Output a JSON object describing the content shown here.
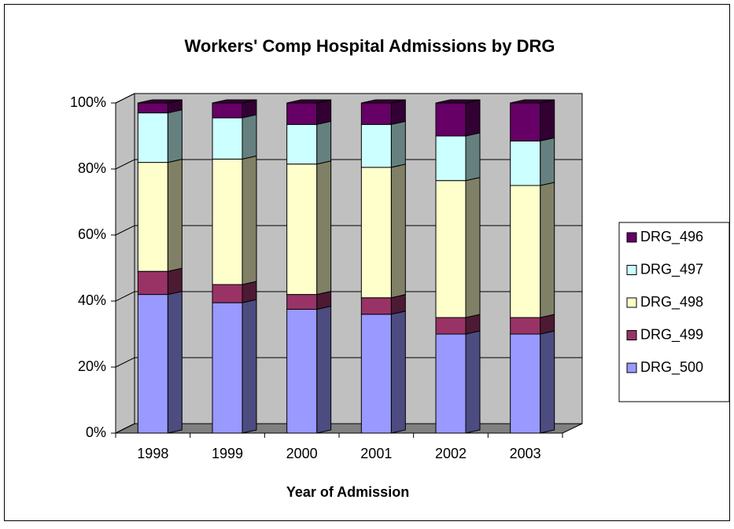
{
  "chart_data": {
    "type": "bar3d_stacked_percent",
    "title": "Workers' Comp Hospital Admissions by DRG",
    "x_label": "Year of Admission",
    "categories": [
      "1998",
      "1999",
      "2000",
      "2001",
      "2002",
      "2003"
    ],
    "series": [
      {
        "name": "DRG_500",
        "color": "#9999ff",
        "side_color": "#4c4c80",
        "values": [
          42,
          39.5,
          37.5,
          36,
          30,
          30
        ]
      },
      {
        "name": "DRG_499",
        "color": "#993366",
        "side_color": "#4d1a33",
        "values": [
          7,
          5.5,
          4.5,
          5,
          5,
          5
        ]
      },
      {
        "name": "DRG_498",
        "color": "#ffffcc",
        "side_color": "#808066",
        "values": [
          33,
          38,
          39.5,
          39.5,
          41.5,
          40
        ]
      },
      {
        "name": "DRG_497",
        "color": "#ccffff",
        "side_color": "#668080",
        "values": [
          15,
          12.5,
          12,
          13,
          13.5,
          13.5
        ]
      },
      {
        "name": "DRG_496",
        "color": "#660066",
        "side_color": "#330033",
        "values": [
          3,
          4.5,
          6.5,
          6.5,
          10,
          11.5
        ]
      }
    ],
    "ylim": [
      0,
      100
    ],
    "yticks": [
      {
        "value": 0,
        "label": "0%"
      },
      {
        "value": 20,
        "label": "20%"
      },
      {
        "value": 40,
        "label": "40%"
      },
      {
        "value": 60,
        "label": "60%"
      },
      {
        "value": 80,
        "label": "80%"
      },
      {
        "value": 100,
        "label": "100%"
      }
    ],
    "grid": true,
    "legend": "right"
  }
}
